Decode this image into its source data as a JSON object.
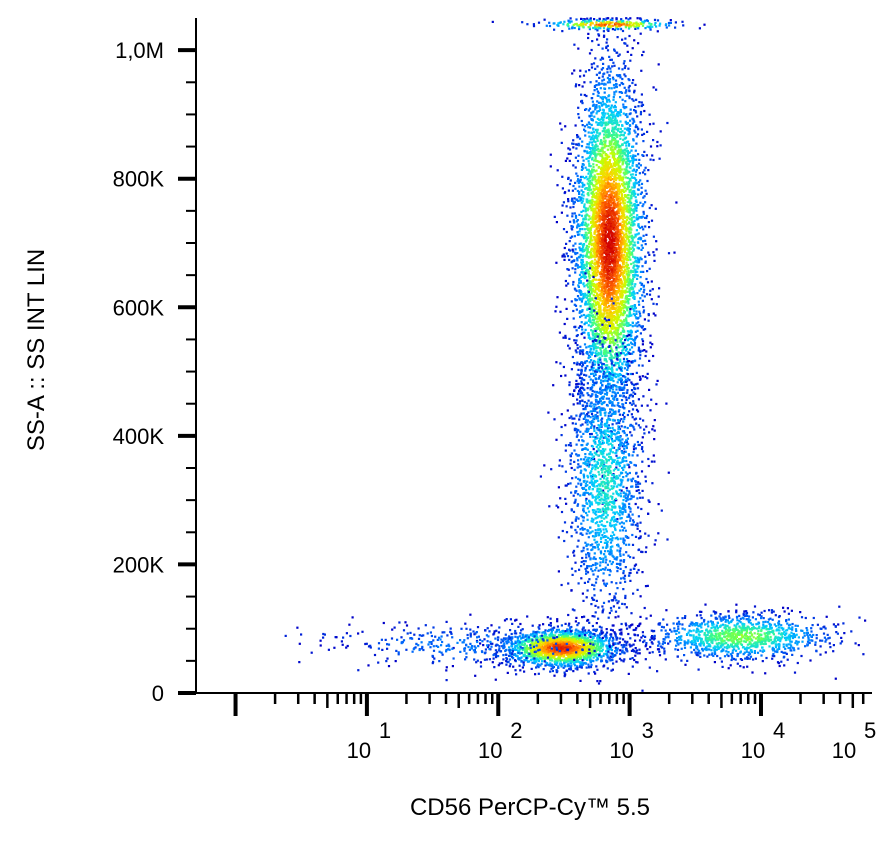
{
  "chart_data": {
    "type": "scatter",
    "plot_style": "flow cytometry density dot plot",
    "xlabel": "CD56 PerCP-Cy™ 5.5",
    "ylabel": "SS-A :: SS INT LIN",
    "x_scale": "log",
    "xlim": [
      0.5,
      70000
    ],
    "ylim": [
      0,
      1050000
    ],
    "x_ticks": [
      {
        "base": "10",
        "exp": "1",
        "value": 10
      },
      {
        "base": "10",
        "exp": "2",
        "value": 100
      },
      {
        "base": "10",
        "exp": "3",
        "value": 1000
      },
      {
        "base": "10",
        "exp": "4",
        "value": 10000
      },
      {
        "base": "10",
        "exp": "5",
        "value": 100000
      }
    ],
    "y_ticks": [
      {
        "label": "0",
        "value": 0
      },
      {
        "label": "200K",
        "value": 200000
      },
      {
        "label": "400K",
        "value": 400000
      },
      {
        "label": "600K",
        "value": 600000
      },
      {
        "label": "800K",
        "value": 800000
      },
      {
        "label": "1,0M",
        "value": 1000000
      }
    ],
    "density_colormap": [
      "#0000c8",
      "#0070ff",
      "#00d0ff",
      "#40ff80",
      "#c8ff00",
      "#ffd000",
      "#ff6000",
      "#d00000"
    ],
    "populations": [
      {
        "name_hidden": true,
        "center_x": 700,
        "center_y": 700000,
        "spread_log_x": 0.13,
        "spread_y": 130000,
        "count": 5200,
        "peak_density": 1.0
      },
      {
        "name_hidden": true,
        "center_x": 650,
        "center_y": 330000,
        "spread_log_x": 0.15,
        "spread_y": 110000,
        "count": 1600,
        "peak_density": 0.35
      },
      {
        "name_hidden": true,
        "center_x": 300,
        "center_y": 70000,
        "spread_log_x": 0.22,
        "spread_y": 15000,
        "count": 1800,
        "peak_density": 0.95
      },
      {
        "name_hidden": true,
        "center_x": 7000,
        "center_y": 88000,
        "spread_log_x": 0.35,
        "spread_y": 18000,
        "count": 1100,
        "peak_density": 0.5
      },
      {
        "name_hidden": true,
        "center_x": 60,
        "center_y": 75000,
        "spread_log_x": 0.6,
        "spread_y": 18000,
        "count": 350,
        "peak_density": 0.15
      },
      {
        "name_hidden": true,
        "center_x": 700,
        "center_y": 1040000,
        "spread_log_x": 0.25,
        "spread_y": 4000,
        "count": 250,
        "peak_density": 0.9,
        "note": "off-scale accumulation at top edge"
      }
    ]
  }
}
